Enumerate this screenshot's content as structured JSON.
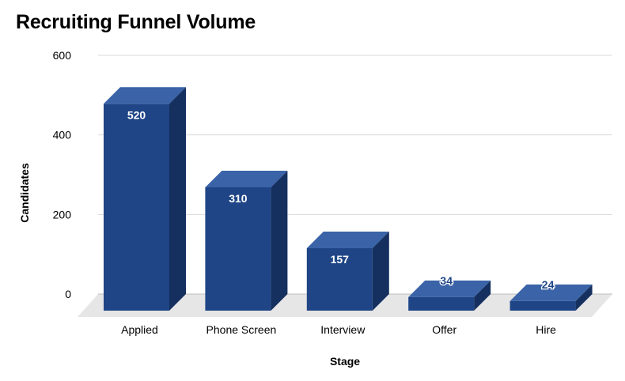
{
  "chart_data": {
    "type": "bar",
    "title": "Recruiting Funnel Volume",
    "xlabel": "Stage",
    "ylabel": "Candidates",
    "categories": [
      "Applied",
      "Phone Screen",
      "Interview",
      "Offer",
      "Hire"
    ],
    "values": [
      520,
      310,
      157,
      34,
      24
    ],
    "ylim": [
      0,
      600
    ],
    "yticks": [
      0,
      200,
      400,
      600
    ],
    "grid": true,
    "legend": "none",
    "style": "3d",
    "colors": {
      "front": "#1f4586",
      "top": "#3a63a8",
      "side": "#15305f",
      "floor": "#e6e6e6",
      "grid": "#d9d9d9",
      "label_inside": "#ffffff",
      "label_outside": "#1f4586"
    }
  }
}
